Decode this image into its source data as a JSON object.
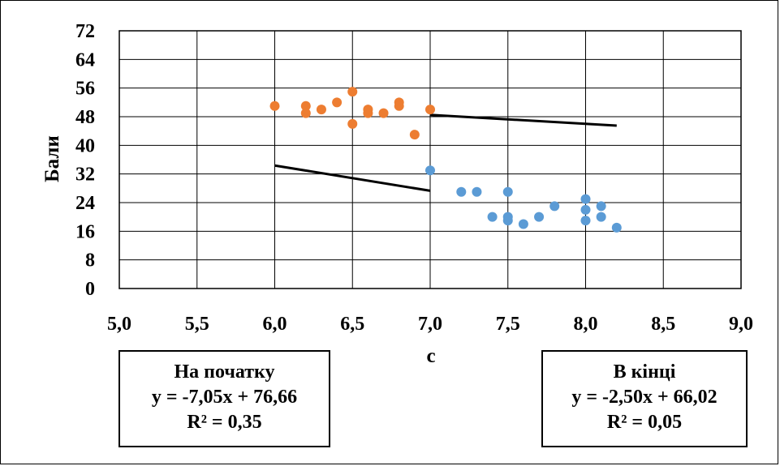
{
  "chart_data": {
    "type": "scatter",
    "title": "",
    "xlabel": "с",
    "ylabel": "Бали",
    "xlim": [
      5.0,
      9.0
    ],
    "ylim": [
      0,
      72
    ],
    "xticks": [
      "5,0",
      "5,5",
      "6,0",
      "6,5",
      "7,0",
      "7,5",
      "8,0",
      "8,5",
      "9,0"
    ],
    "yticks": [
      "0",
      "8",
      "16",
      "24",
      "32",
      "40",
      "48",
      "56",
      "64",
      "72"
    ],
    "grid": true,
    "series": [
      {
        "color": "#ED7D31",
        "points": [
          [
            6.0,
            51
          ],
          [
            6.2,
            51
          ],
          [
            6.2,
            49
          ],
          [
            6.3,
            50
          ],
          [
            6.4,
            52
          ],
          [
            6.5,
            55
          ],
          [
            6.5,
            46
          ],
          [
            6.6,
            50
          ],
          [
            6.6,
            49
          ],
          [
            6.7,
            49
          ],
          [
            6.8,
            52
          ],
          [
            6.8,
            51
          ],
          [
            6.9,
            43
          ],
          [
            7.0,
            50
          ]
        ],
        "trendline": {
          "slope": -7.05,
          "intercept": 76.66,
          "x_range": [
            6.0,
            7.0
          ]
        }
      },
      {
        "color": "#5B9BD5",
        "points": [
          [
            7.0,
            33
          ],
          [
            7.2,
            27
          ],
          [
            7.3,
            27
          ],
          [
            7.4,
            20
          ],
          [
            7.5,
            27
          ],
          [
            7.5,
            20
          ],
          [
            7.5,
            19
          ],
          [
            7.6,
            18
          ],
          [
            7.7,
            20
          ],
          [
            7.8,
            23
          ],
          [
            8.0,
            25
          ],
          [
            8.0,
            22
          ],
          [
            8.0,
            19
          ],
          [
            8.1,
            23
          ],
          [
            8.1,
            20
          ],
          [
            8.2,
            17
          ]
        ],
        "trendline": {
          "slope": -2.5,
          "intercept": 66.02,
          "x_range": [
            7.0,
            8.2
          ]
        }
      }
    ],
    "annotations": [
      {
        "lines": [
          "На початку",
          "y = -7,05x + 76,66",
          "R² = 0,35"
        ]
      },
      {
        "lines": [
          "В кінці",
          "y = -2,50x + 66,02",
          "R² = 0,05"
        ]
      }
    ]
  }
}
